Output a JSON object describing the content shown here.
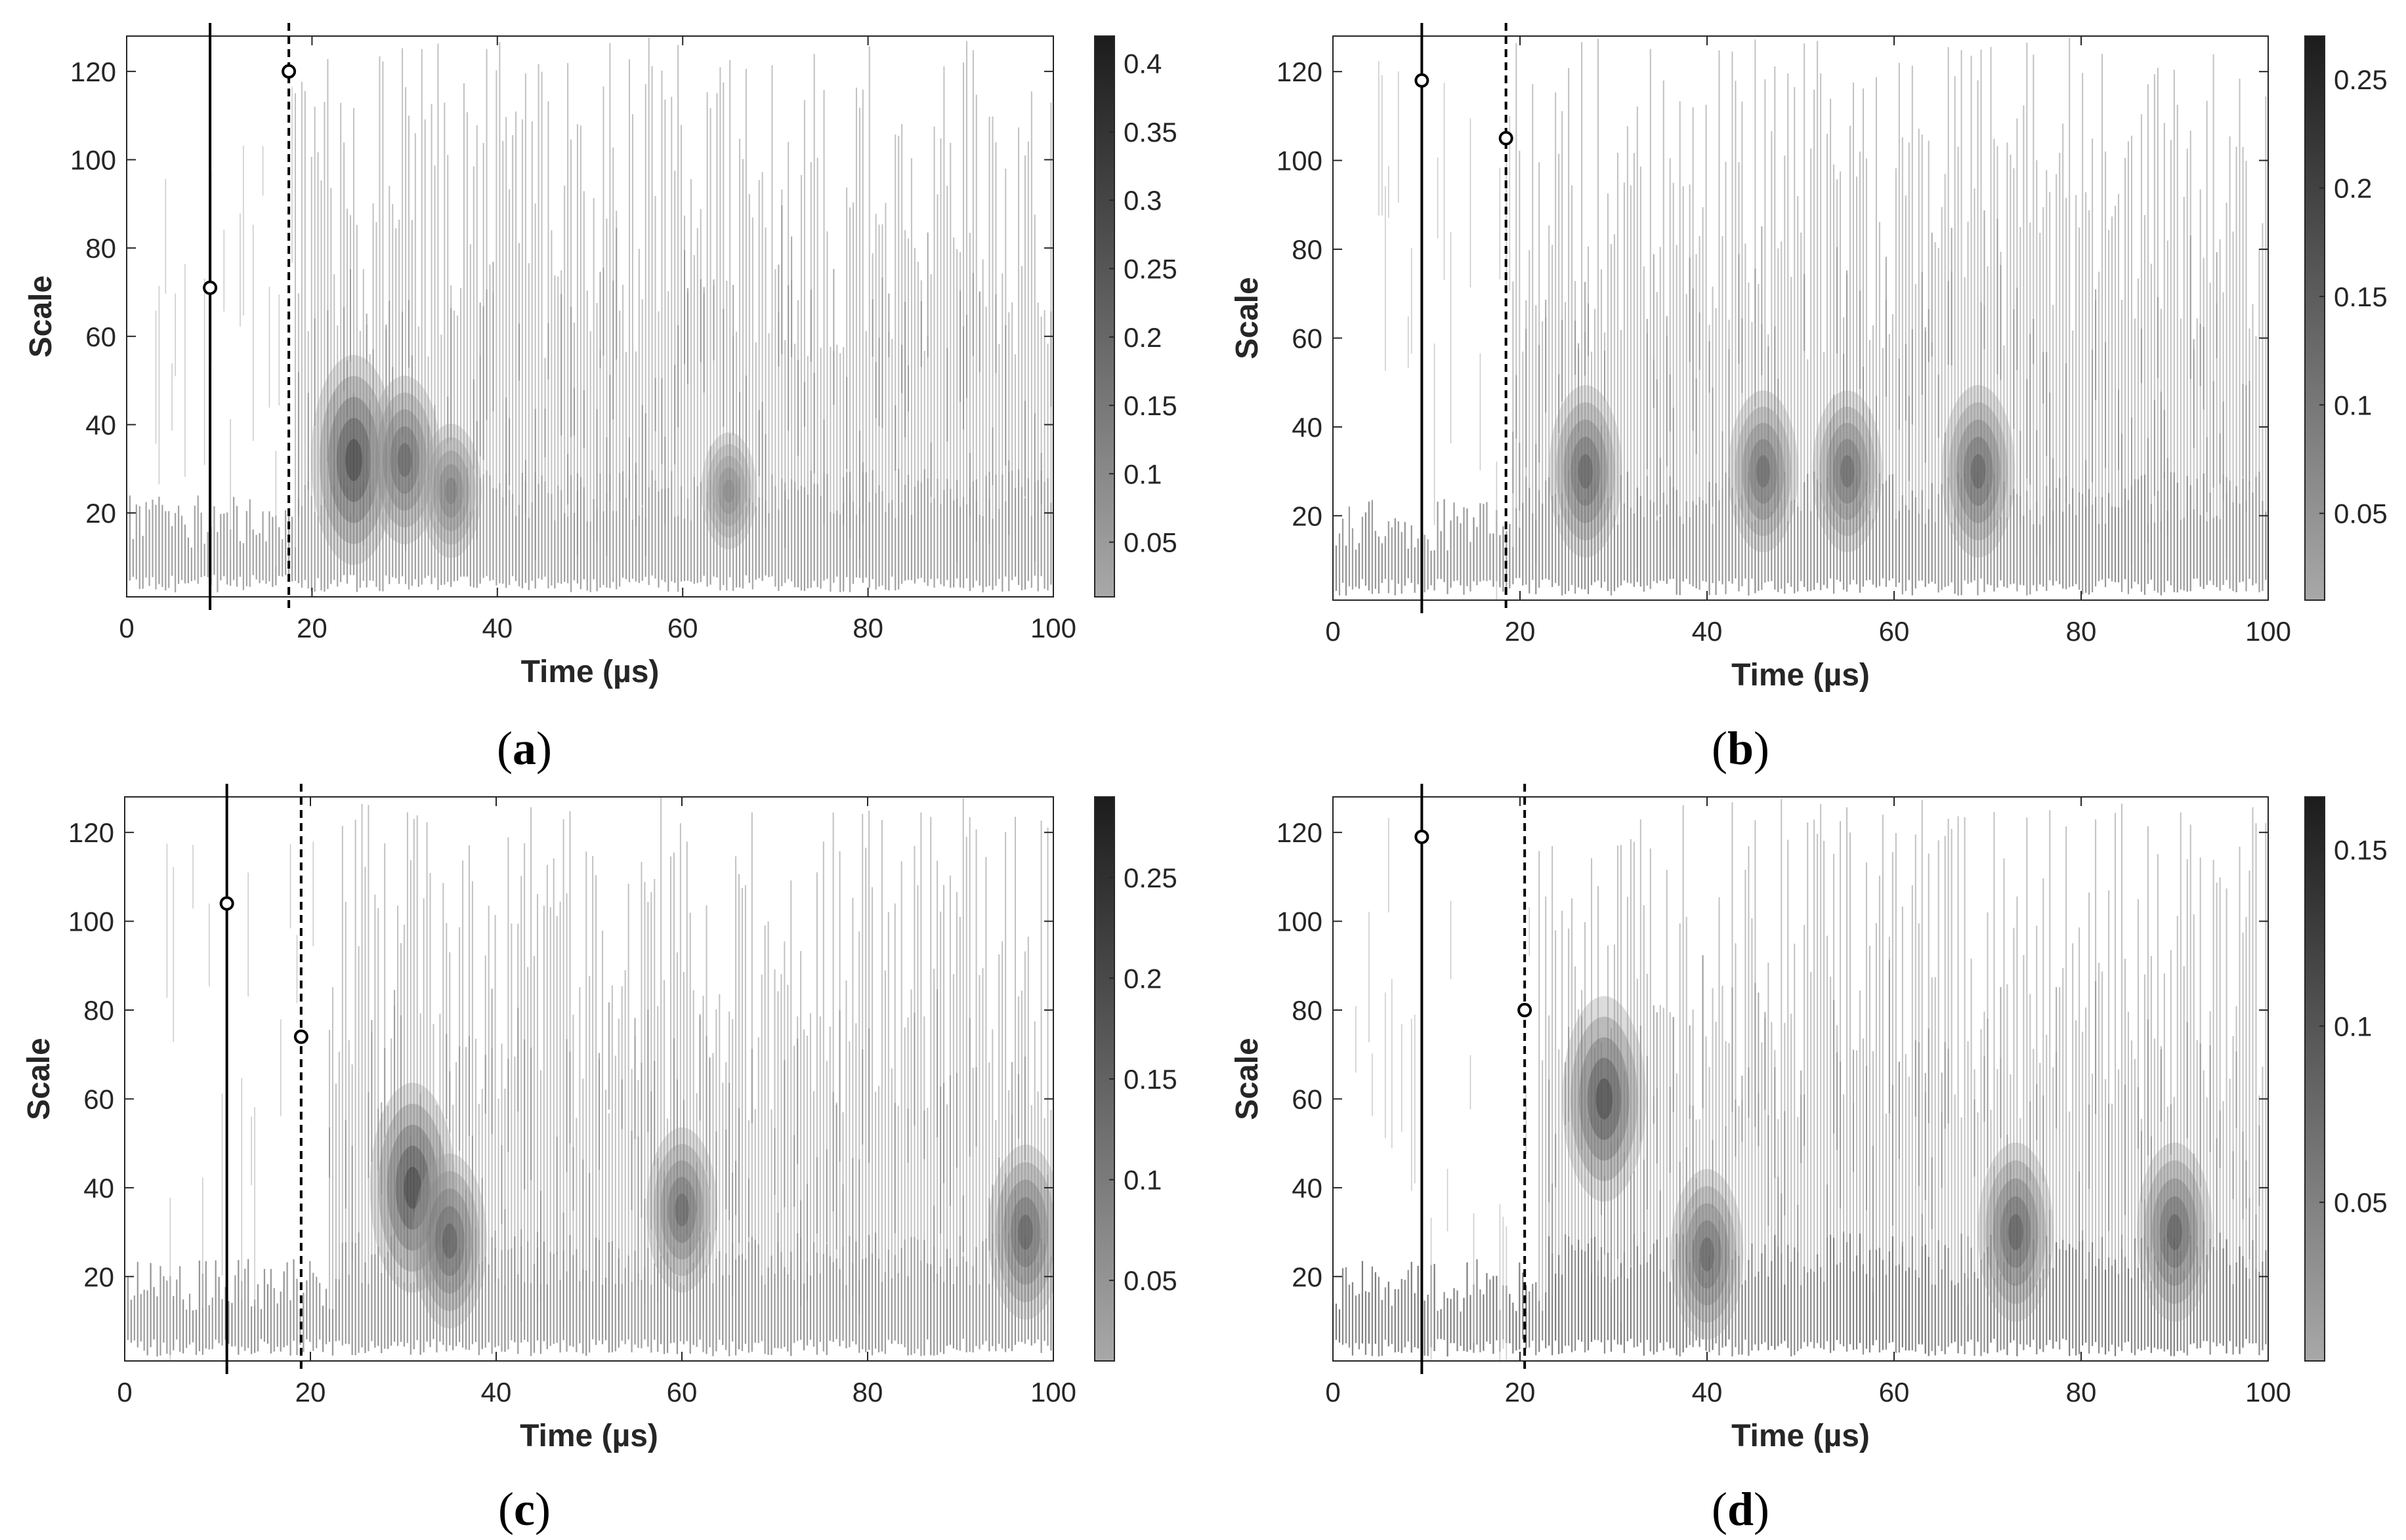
{
  "chart_data": [
    {
      "type": "heatmap",
      "panel_label": "a",
      "xlabel": "Time (µs)",
      "ylabel": "Scale",
      "xlim": [
        0,
        100
      ],
      "ylim": [
        1,
        128
      ],
      "x_ticks": [
        "0",
        "20",
        "40",
        "60",
        "80",
        "100"
      ],
      "y_ticks": [
        "20",
        "40",
        "60",
        "80",
        "100",
        "120"
      ],
      "colorbar": {
        "range": [
          0.01,
          0.42
        ],
        "ticks": [
          "0.05",
          "0.1",
          "0.15",
          "0.2",
          "0.25",
          "0.3",
          "0.35",
          "0.4"
        ]
      },
      "solid_line_x": 9,
      "dashed_line_x": 17.5,
      "markers": [
        {
          "x": 9,
          "y": 71
        },
        {
          "x": 17.5,
          "y": 120
        }
      ],
      "energy_onset": 19,
      "hotspots": [
        {
          "x": 24.5,
          "y": 32,
          "v": 0.42
        },
        {
          "x": 30,
          "y": 32,
          "v": 0.3
        },
        {
          "x": 35,
          "y": 25,
          "v": 0.2
        },
        {
          "x": 65,
          "y": 25,
          "v": 0.15
        }
      ]
    },
    {
      "type": "heatmap",
      "panel_label": "b",
      "xlabel": "Time (µs)",
      "ylabel": "Scale",
      "xlim": [
        0,
        100
      ],
      "ylim": [
        1,
        128
      ],
      "x_ticks": [
        "0",
        "20",
        "40",
        "60",
        "80",
        "100"
      ],
      "y_ticks": [
        "20",
        "40",
        "60",
        "80",
        "100",
        "120"
      ],
      "colorbar": {
        "range": [
          0.01,
          0.27
        ],
        "ticks": [
          "0.05",
          "0.1",
          "0.15",
          "0.2",
          "0.25"
        ]
      },
      "solid_line_x": 9.5,
      "dashed_line_x": 18.5,
      "markers": [
        {
          "x": 9.5,
          "y": 118
        },
        {
          "x": 18.5,
          "y": 105
        }
      ],
      "energy_onset": 20,
      "hotspots": [
        {
          "x": 27,
          "y": 30,
          "v": 0.2
        },
        {
          "x": 46,
          "y": 30,
          "v": 0.18
        },
        {
          "x": 55,
          "y": 30,
          "v": 0.18
        },
        {
          "x": 69,
          "y": 30,
          "v": 0.2
        }
      ]
    },
    {
      "type": "heatmap",
      "panel_label": "c",
      "xlabel": "Time (µs)",
      "ylabel": "Scale",
      "xlim": [
        0,
        100
      ],
      "ylim": [
        1,
        128
      ],
      "x_ticks": [
        "0",
        "20",
        "40",
        "60",
        "80",
        "100"
      ],
      "y_ticks": [
        "20",
        "40",
        "60",
        "80",
        "100",
        "120"
      ],
      "colorbar": {
        "range": [
          0.01,
          0.29
        ],
        "ticks": [
          "0.05",
          "0.1",
          "0.15",
          "0.2",
          "0.25"
        ]
      },
      "solid_line_x": 11,
      "dashed_line_x": 19,
      "markers": [
        {
          "x": 11,
          "y": 104
        },
        {
          "x": 19,
          "y": 74
        }
      ],
      "energy_onset": 23,
      "hotspots": [
        {
          "x": 31,
          "y": 40,
          "v": 0.29
        },
        {
          "x": 35,
          "y": 28,
          "v": 0.22
        },
        {
          "x": 60,
          "y": 35,
          "v": 0.2
        },
        {
          "x": 97,
          "y": 30,
          "v": 0.22
        }
      ]
    },
    {
      "type": "heatmap",
      "panel_label": "d",
      "xlabel": "Time (µs)",
      "ylabel": "Scale",
      "xlim": [
        0,
        100
      ],
      "ylim": [
        1,
        128
      ],
      "x_ticks": [
        "0",
        "20",
        "40",
        "60",
        "80",
        "100"
      ],
      "y_ticks": [
        "20",
        "40",
        "60",
        "80",
        "100",
        "120"
      ],
      "colorbar": {
        "range": [
          0.005,
          0.165
        ],
        "ticks": [
          "0.05",
          "0.1",
          "0.15"
        ]
      },
      "solid_line_x": 9.5,
      "dashed_line_x": 20.5,
      "markers": [
        {
          "x": 9.5,
          "y": 119
        },
        {
          "x": 20.5,
          "y": 80
        }
      ],
      "energy_onset": 23,
      "hotspots": [
        {
          "x": 29,
          "y": 60,
          "v": 0.16
        },
        {
          "x": 40,
          "y": 25,
          "v": 0.12
        },
        {
          "x": 73,
          "y": 30,
          "v": 0.13
        },
        {
          "x": 90,
          "y": 30,
          "v": 0.13
        }
      ]
    }
  ]
}
